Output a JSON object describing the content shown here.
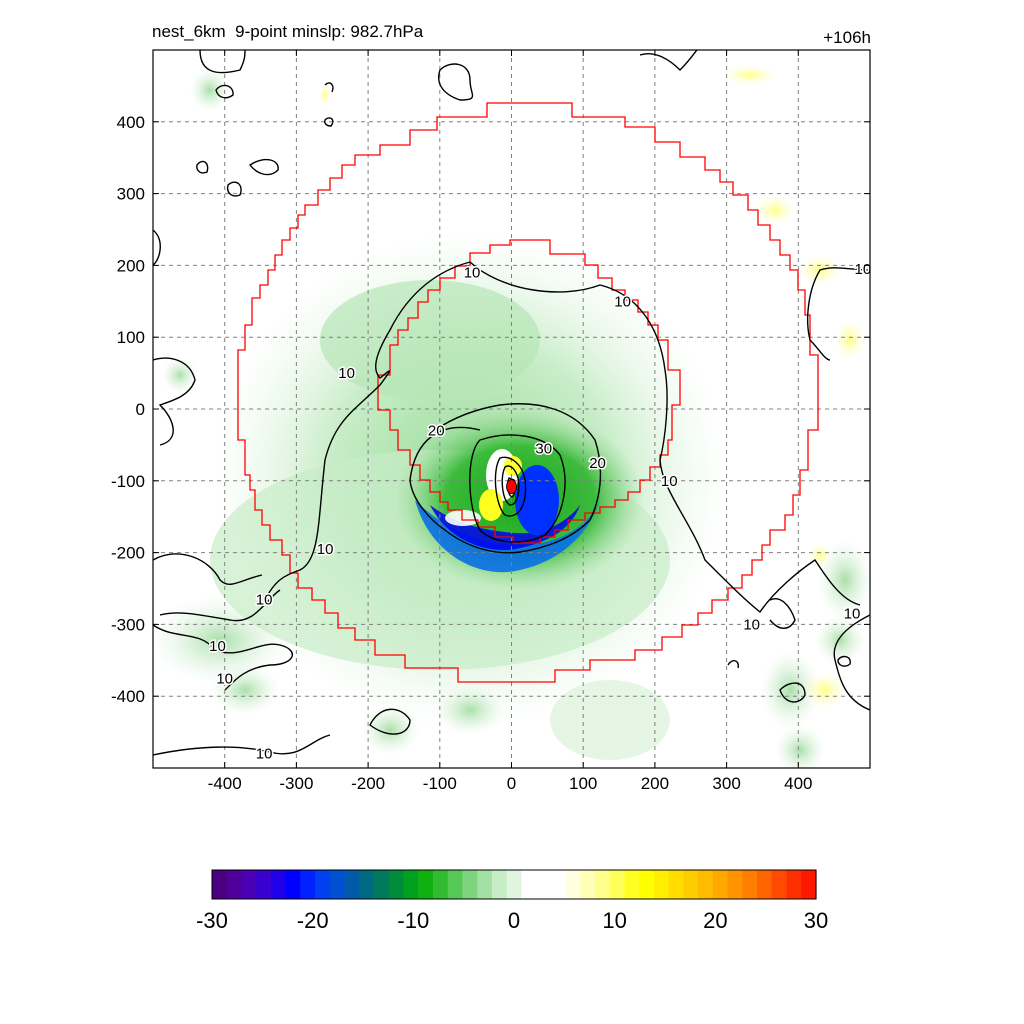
{
  "header": {
    "title_left": "nest_6km  9-point minslp: 982.7hPa",
    "title_right": "+106h"
  },
  "chart_data": {
    "type": "heatmap",
    "x_ticks": [
      -400,
      -300,
      -200,
      -100,
      0,
      100,
      200,
      300,
      400
    ],
    "y_ticks": [
      400,
      300,
      200,
      100,
      0,
      -100,
      -200,
      -300,
      -400
    ],
    "xlim": [
      -500,
      500
    ],
    "ylim": [
      -500,
      500
    ],
    "grid": true,
    "contour_labels": [
      {
        "text": "10",
        "x": -55,
        "y": 190
      },
      {
        "text": "10",
        "x": 155,
        "y": 150
      },
      {
        "text": "10",
        "x": -230,
        "y": 50
      },
      {
        "text": "20",
        "x": -105,
        "y": -30
      },
      {
        "text": "30",
        "x": 45,
        "y": -55
      },
      {
        "text": "20",
        "x": 120,
        "y": -75
      },
      {
        "text": "10",
        "x": 220,
        "y": -100
      },
      {
        "text": "10",
        "x": -260,
        "y": -195
      },
      {
        "text": "10",
        "x": -345,
        "y": -265
      },
      {
        "text": "10",
        "x": -410,
        "y": -330
      },
      {
        "text": "10",
        "x": -400,
        "y": -375
      },
      {
        "text": "10",
        "x": 335,
        "y": -300
      },
      {
        "text": "10",
        "x": 475,
        "y": -285
      },
      {
        "text": "10",
        "x": 490,
        "y": 195
      },
      {
        "text": "10",
        "x": -345,
        "y": -480
      }
    ],
    "center_marker": {
      "x": 0,
      "y": -108,
      "color": "#ff0000"
    },
    "colorbar": {
      "ticks": [
        "-30",
        "-20",
        "-10",
        "0",
        "10",
        "20",
        "30"
      ],
      "range": [
        -30,
        30
      ],
      "colors": [
        "#4b0082",
        "#50009a",
        "#4a00b4",
        "#3a00d0",
        "#2000e8",
        "#0000ff",
        "#0022ff",
        "#0040ee",
        "#0050d4",
        "#005aa8",
        "#006a80",
        "#007a5a",
        "#008c3a",
        "#00a020",
        "#10b010",
        "#30bb30",
        "#55c855",
        "#7ed37e",
        "#a4e0a4",
        "#c6edc6",
        "#e0f5e0",
        "#ffffff",
        "#ffffff",
        "#ffffff",
        "#ffffe0",
        "#ffffb8",
        "#ffff8c",
        "#ffff5c",
        "#ffff22",
        "#ffff00",
        "#ffee00",
        "#ffdd00",
        "#ffcc00",
        "#ffbb00",
        "#ffa800",
        "#ff9400",
        "#ff7e00",
        "#ff6400",
        "#ff4a00",
        "#ff3000",
        "#ff1800"
      ]
    }
  }
}
